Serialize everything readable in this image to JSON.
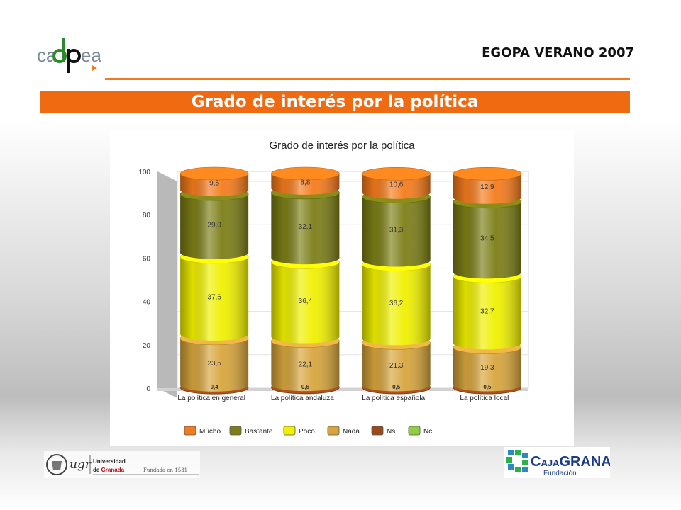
{
  "header": {
    "title": "EGOPA VERANO 2007",
    "logo_text": "cadpea"
  },
  "banner": {
    "title": "Grado de interés por la política"
  },
  "chart_data": {
    "type": "bar",
    "stacked": true,
    "title": "Grado de interés por la política",
    "categories": [
      "La política en general",
      "La política andaluza",
      "La política española",
      "La política local"
    ],
    "y_ticks": [
      "0",
      "20",
      "40",
      "60",
      "80",
      "100"
    ],
    "ylim": [
      0,
      100
    ],
    "legend_position": "bottom",
    "series": [
      {
        "name": "Nc",
        "color": "#8fcf3c",
        "values": [
          0.0,
          0.0,
          0.0,
          0.0
        ],
        "labels": [
          "",
          "",
          "",
          ""
        ]
      },
      {
        "name": "Ns",
        "color": "#9a4a1a",
        "values": [
          0.4,
          0.6,
          0.5,
          0.5
        ],
        "labels": [
          "0,4",
          "0,6",
          "0,5",
          "0,5"
        ]
      },
      {
        "name": "Nada",
        "color": "#d7a53c",
        "values": [
          23.5,
          22.1,
          21.3,
          19.3
        ],
        "labels": [
          "23,5",
          "22,1",
          "21,3",
          "19,3"
        ]
      },
      {
        "name": "Poco",
        "color": "#f0f000",
        "values": [
          37.6,
          36.4,
          36.2,
          32.7
        ],
        "labels": [
          "37,6",
          "36,4",
          "36,2",
          "32,7"
        ]
      },
      {
        "name": "Bastante",
        "color": "#7c7e16",
        "values": [
          29.0,
          32.1,
          31.3,
          34.5
        ],
        "labels": [
          "29,0",
          "32,1",
          "31,3",
          "34,5"
        ]
      },
      {
        "name": "Mucho",
        "color": "#f47b1c",
        "values": [
          9.5,
          8.8,
          10.6,
          12.9
        ],
        "labels": [
          "9,5",
          "8,8",
          "10,6",
          "12,9"
        ]
      }
    ],
    "legend_order": [
      "Mucho",
      "Bastante",
      "Poco",
      "Nada",
      "Ns",
      "Nc"
    ]
  },
  "footer": {
    "university_line1": "Universidad",
    "university_line2_prefix": "de ",
    "university_line2_name": "Granada",
    "founded": "Fundada en 1531",
    "ugr_mark": "ugr",
    "caja_prefix": "C",
    "caja_aja": "AJA",
    "caja_name": "GRANADA",
    "caja_sub": "Fundación"
  }
}
